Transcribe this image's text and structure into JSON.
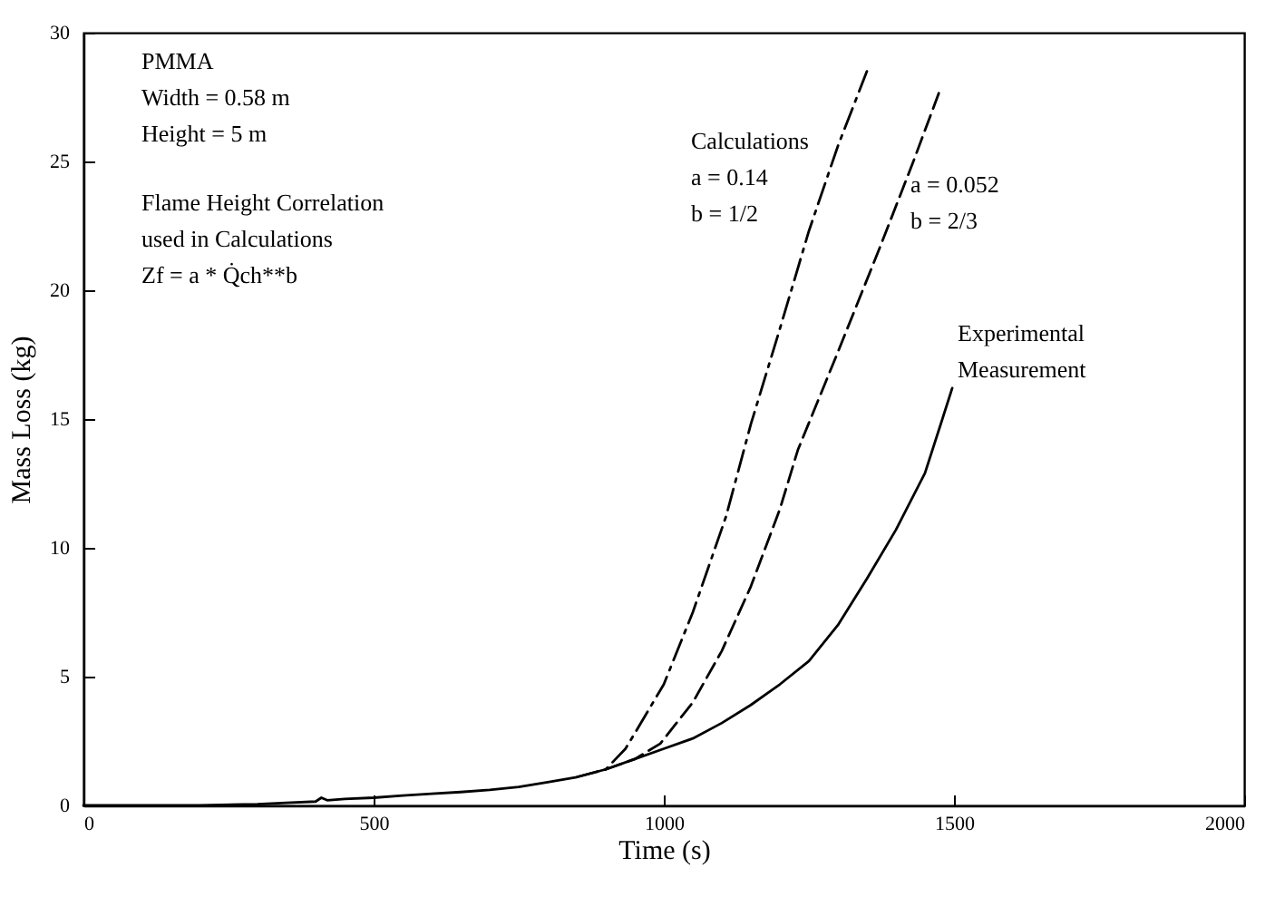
{
  "chart_data": {
    "type": "line",
    "xlabel": "Time (s)",
    "ylabel": "Mass Loss (kg)",
    "xlim": [
      0,
      2000
    ],
    "xticks": [
      0,
      500,
      1000,
      1500,
      2000
    ],
    "ylim": [
      0,
      30
    ],
    "yticks": [
      0,
      5,
      10,
      15,
      20,
      25,
      30
    ],
    "marker": "none",
    "series": [
      {
        "color": "#000000",
        "line_style": "solid",
        "x": [
          0,
          100,
          200,
          300,
          350,
          400,
          410,
          420,
          450,
          500,
          550,
          600,
          650,
          700,
          750,
          800,
          850,
          900,
          950,
          1000,
          1050,
          1100,
          1150,
          1200,
          1250,
          1300,
          1350,
          1400,
          1450,
          1480,
          1497
        ],
        "values": [
          0,
          0,
          0,
          0.05,
          0.1,
          0.15,
          0.3,
          0.2,
          0.25,
          0.3,
          0.38,
          0.45,
          0.52,
          0.6,
          0.72,
          0.9,
          1.1,
          1.4,
          1.8,
          2.2,
          2.6,
          3.2,
          3.9,
          4.7,
          5.6,
          7.0,
          8.8,
          10.7,
          12.9,
          15.0,
          16.2
        ]
      },
      {
        "color": "#000000",
        "line_style": "dashdot",
        "x": [
          850,
          900,
          934,
          950,
          1000,
          1050,
          1107,
          1150,
          1200,
          1250,
          1300,
          1350
        ],
        "values": [
          1.1,
          1.4,
          2.2,
          2.8,
          4.7,
          7.5,
          11.2,
          14.8,
          18.5,
          22.3,
          25.6,
          28.5
        ]
      },
      {
        "color": "#000000",
        "line_style": "dashed",
        "x": [
          900,
          950,
          994,
          1050,
          1100,
          1150,
          1200,
          1231,
          1300,
          1373,
          1430,
          1478
        ],
        "values": [
          1.4,
          1.8,
          2.4,
          4.0,
          6.0,
          8.5,
          11.5,
          13.8,
          17.6,
          21.7,
          25.0,
          27.9
        ]
      }
    ],
    "annotations": [
      "PMMA\nWidth = 0.58 m\nHeight = 5 m",
      "Flame Height Correlation\nused in Calculations\nZf = a * Q̇ch**b",
      "Calculations\na = 0.14\nb = 1/2",
      {
        "text": "a = 0.052\nb = 2/3",
        "x": 1425,
        "y": 24.5
      },
      "Experimental\nMeasurement"
    ]
  }
}
